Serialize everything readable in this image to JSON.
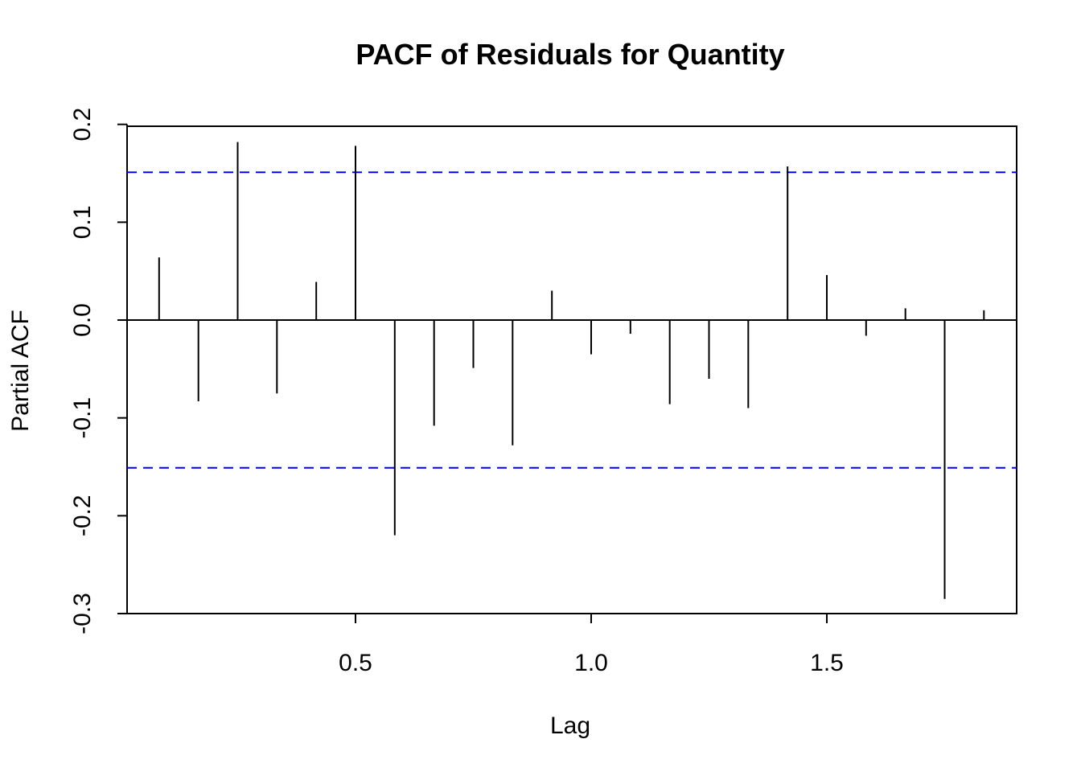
{
  "chart_data": {
    "type": "bar",
    "title": "PACF of Residuals for Quantity",
    "xlabel": "Lag",
    "ylabel": "Partial ACF",
    "xlim": [
      0.0139,
      1.9028
    ],
    "ylim": [
      -0.3,
      0.2
    ],
    "x_ticks": [
      0.5,
      1.0,
      1.5
    ],
    "x_tick_labels": [
      "0.5",
      "1.0",
      "1.5"
    ],
    "y_ticks": [
      -0.3,
      -0.2,
      -0.1,
      0.0,
      0.1,
      0.2
    ],
    "y_tick_labels": [
      "-0.3",
      "-0.2",
      "-0.1",
      "0.0",
      "0.1",
      "0.2"
    ],
    "confidence_bound": 0.151,
    "colors": {
      "bars": "#000000",
      "confidence_lines": "#0000ff"
    },
    "series": [
      {
        "x": [
          0.0833,
          0.1667,
          0.25,
          0.3333,
          0.4167,
          0.5,
          0.5833,
          0.6667,
          0.75,
          0.8333,
          0.9167,
          1.0,
          1.0833,
          1.1667,
          1.25,
          1.3333,
          1.4167,
          1.5,
          1.5833,
          1.6667,
          1.75,
          1.8333
        ],
        "values": [
          0.064,
          -0.083,
          0.182,
          -0.075,
          0.039,
          0.178,
          -0.22,
          -0.108,
          -0.049,
          -0.128,
          0.03,
          -0.035,
          -0.014,
          -0.086,
          -0.06,
          -0.09,
          0.157,
          0.046,
          -0.016,
          0.012,
          -0.285,
          0.01
        ]
      }
    ]
  }
}
